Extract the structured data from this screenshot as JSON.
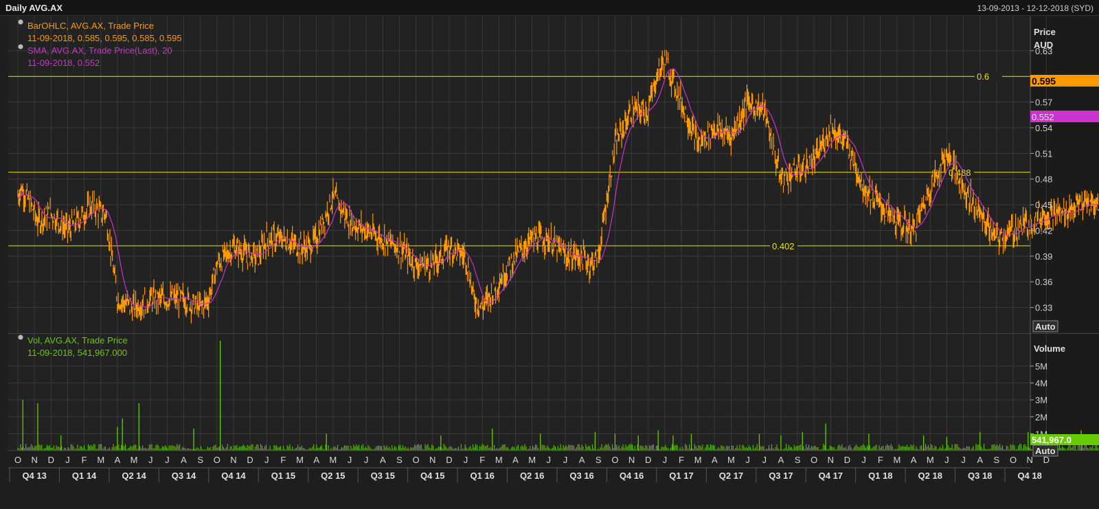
{
  "window": {
    "title": "Daily AVG.AX",
    "date_range": "13-09-2013 - 12-12-2018 (SYD)"
  },
  "colors": {
    "bar": "#ff9900",
    "sma": "#cc33cc",
    "volume": "#66cc00",
    "level": "#e6e600",
    "grid": "#3a3a3a"
  },
  "price_panel": {
    "legend": [
      {
        "icon": "bullet-icon",
        "name": "BarOHLC, AVG.AX, Trade Price",
        "value": "11-09-2018, 0.585, 0.595, 0.585, 0.595",
        "color": "#ff9900"
      },
      {
        "icon": "bullet-icon",
        "name": "SMA, AVG.AX, Trade Price(Last),  20",
        "value": "11-09-2018, 0.552",
        "color": "#cc33cc"
      }
    ],
    "axis_title": "Price",
    "axis_unit": "AUD",
    "auto_label": "Auto",
    "last_price_tag": "0.595",
    "last_sma_tag": "0.552",
    "levels": [
      {
        "value": 0.6,
        "label": "0.6"
      },
      {
        "value": 0.488,
        "label": "0.488"
      },
      {
        "value": 0.402,
        "label": "0.402"
      }
    ]
  },
  "volume_panel": {
    "legend": {
      "icon": "bullet-icon",
      "name": "Vol, AVG.AX, Trade Price",
      "value": "11-09-2018, 541,967.000",
      "color": "#66cc00"
    },
    "axis_title": "Volume",
    "auto_label": "Auto",
    "last_volume_tag": "541,967.0"
  },
  "chart_data": {
    "type": "line",
    "price": {
      "ylim": [
        0.3,
        0.67
      ],
      "yticks": [
        0.33,
        0.36,
        0.39,
        0.42,
        0.45,
        0.48,
        0.51,
        0.54,
        0.57,
        0.63
      ],
      "ytick_labels": [
        "0.33",
        "0.36",
        "0.39",
        "0.42",
        "0.45",
        "0.48",
        "0.51",
        "0.54",
        "0.57",
        "0.63"
      ],
      "t": [
        0,
        0.2,
        0.8,
        1.2,
        2,
        3,
        4,
        4.5,
        5,
        5.3,
        6,
        7,
        8,
        9,
        10,
        11,
        11.5,
        12,
        13,
        14,
        14.5,
        15,
        16,
        17,
        17.5,
        18,
        19,
        20,
        21,
        22,
        23,
        24,
        25,
        26,
        27,
        27.5,
        28,
        29,
        30,
        31,
        32,
        33,
        34,
        34.5,
        35,
        36,
        37,
        38,
        38.5,
        39,
        40,
        41,
        42,
        43,
        44,
        45,
        46,
        47,
        48,
        48.5,
        49,
        50,
        51,
        52,
        53,
        54,
        55,
        56,
        57,
        58,
        59,
        60,
        61,
        62,
        63
      ],
      "close": [
        0.46,
        0.47,
        0.45,
        0.43,
        0.44,
        0.42,
        0.44,
        0.45,
        0.44,
        0.44,
        0.34,
        0.33,
        0.34,
        0.34,
        0.34,
        0.33,
        0.34,
        0.38,
        0.4,
        0.39,
        0.39,
        0.41,
        0.41,
        0.4,
        0.4,
        0.41,
        0.46,
        0.43,
        0.42,
        0.41,
        0.4,
        0.38,
        0.38,
        0.4,
        0.39,
        0.34,
        0.33,
        0.36,
        0.39,
        0.41,
        0.41,
        0.39,
        0.39,
        0.38,
        0.39,
        0.52,
        0.56,
        0.56,
        0.6,
        0.62,
        0.57,
        0.52,
        0.54,
        0.53,
        0.57,
        0.56,
        0.48,
        0.49,
        0.5,
        0.52,
        0.54,
        0.52,
        0.47,
        0.45,
        0.43,
        0.42,
        0.47,
        0.51,
        0.47,
        0.44,
        0.41,
        0.42,
        0.43,
        0.44,
        0.44
      ],
      "close_tail_t": [
        63,
        64,
        65,
        66,
        67,
        68,
        68.5,
        69,
        70,
        71,
        72,
        73,
        74,
        75,
        75.5,
        76,
        76.5
      ],
      "close_tail": [
        0.44,
        0.45,
        0.45,
        0.46,
        0.5,
        0.58,
        0.6,
        0.61,
        0.6,
        0.64,
        0.62,
        0.6,
        0.55,
        0.51,
        0.53,
        0.54,
        0.595
      ]
    },
    "volume": {
      "ylim": [
        0,
        6.5
      ],
      "yticks": [
        1,
        2,
        3,
        4,
        5
      ],
      "ytick_labels": [
        "1M",
        "2M",
        "3M",
        "4M",
        "5M"
      ],
      "spikes": [
        [
          0.3,
          3.0
        ],
        [
          1.2,
          2.8
        ],
        [
          2.6,
          0.9
        ],
        [
          6.0,
          1.4
        ],
        [
          6.3,
          1.9
        ],
        [
          7.3,
          2.8
        ],
        [
          10.6,
          1.3
        ],
        [
          12.2,
          6.5
        ],
        [
          18.6,
          1.0
        ],
        [
          25.5,
          0.9
        ],
        [
          28.6,
          1.3
        ],
        [
          31.5,
          1.0
        ],
        [
          34.8,
          1.1
        ],
        [
          36.0,
          1.0
        ],
        [
          37.4,
          0.9
        ],
        [
          38.6,
          1.2
        ],
        [
          39.5,
          0.9
        ],
        [
          40.6,
          1.0
        ],
        [
          44.7,
          1.0
        ],
        [
          46.0,
          0.9
        ],
        [
          47.3,
          1.1
        ],
        [
          48.7,
          1.6
        ],
        [
          51.3,
          1.0
        ],
        [
          54.6,
          0.9
        ],
        [
          56.0,
          0.8
        ],
        [
          58.0,
          1.1
        ],
        [
          60.9,
          1.1
        ],
        [
          62.5,
          0.8
        ],
        [
          64.1,
          1.2
        ],
        [
          66.1,
          1.4
        ],
        [
          66.6,
          3.4
        ],
        [
          67.0,
          3.5
        ],
        [
          67.4,
          1.7
        ],
        [
          68.1,
          2.1
        ],
        [
          68.6,
          1.9
        ],
        [
          69.3,
          2.2
        ],
        [
          70.1,
          1.3
        ],
        [
          70.7,
          1.6
        ],
        [
          71.8,
          1.0
        ],
        [
          72.7,
          1.1
        ],
        [
          73.8,
          1.6
        ],
        [
          74.3,
          1.0
        ],
        [
          75.2,
          1.5
        ],
        [
          75.8,
          0.9
        ],
        [
          76.0,
          5.2
        ],
        [
          76.4,
          1.4
        ],
        [
          76.7,
          0.6
        ]
      ]
    },
    "x_axis": {
      "months": [
        "O",
        "N",
        "D",
        "J",
        "F",
        "M",
        "A",
        "M",
        "J",
        "J",
        "A",
        "S",
        "O",
        "N",
        "D",
        "J",
        "F",
        "M",
        "A",
        "M",
        "J",
        "J",
        "A",
        "S",
        "O",
        "N",
        "D",
        "J",
        "F",
        "M",
        "A",
        "M",
        "J",
        "J",
        "A",
        "S",
        "O",
        "N",
        "D",
        "J",
        "F",
        "M",
        "A",
        "M",
        "J",
        "J",
        "A",
        "S",
        "O",
        "N",
        "D",
        "J",
        "F",
        "M",
        "A",
        "M",
        "J",
        "J",
        "A",
        "S",
        "O",
        "N",
        "D"
      ],
      "quarters": [
        "Q4 13",
        "Q1 14",
        "Q2 14",
        "Q3 14",
        "Q4 14",
        "Q1 15",
        "Q2 15",
        "Q3 15",
        "Q4 15",
        "Q1 16",
        "Q2 16",
        "Q3 16",
        "Q4 16",
        "Q1 17",
        "Q2 17",
        "Q3 17",
        "Q4 17",
        "Q1 18",
        "Q2 18",
        "Q3 18",
        "Q4 18"
      ]
    }
  }
}
